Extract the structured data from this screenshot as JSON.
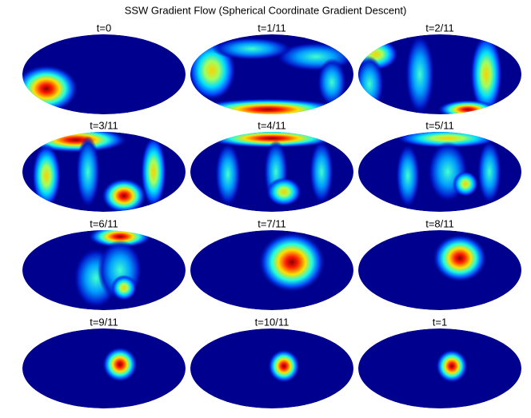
{
  "title": "SSW Gradient Flow (Spherical Coordinate Gradient Descent)",
  "panels": [
    {
      "label": "t=0"
    },
    {
      "label": "t=1/11"
    },
    {
      "label": "t=2/11"
    },
    {
      "label": "t=3/11"
    },
    {
      "label": "t=4/11"
    },
    {
      "label": "t=5/11"
    },
    {
      "label": "t=6/11"
    },
    {
      "label": "t=7/11"
    },
    {
      "label": "t=8/11"
    },
    {
      "label": "t=9/11"
    },
    {
      "label": "t=10/11"
    },
    {
      "label": "t=1"
    }
  ]
}
